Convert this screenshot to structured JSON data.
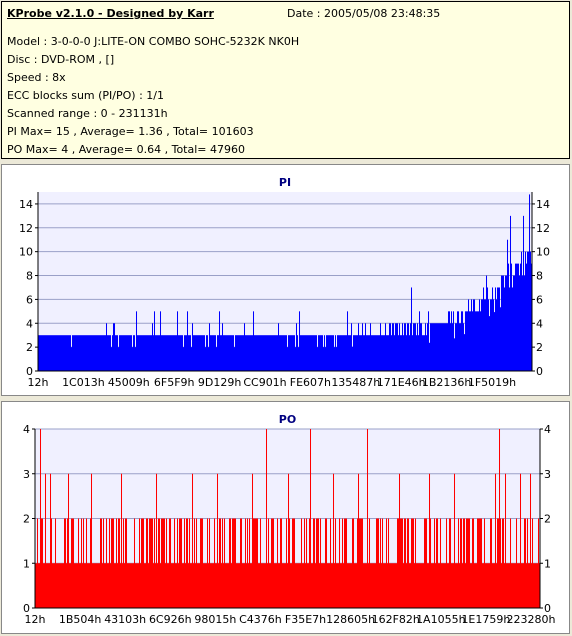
{
  "info": {
    "title": "KProbe v2.1.0 - Designed by Karr",
    "date": "Date : 2005/05/08 23:48:35",
    "lines": [
      "Model : 3-0-0-0 J:LITE-ON COMBO SOHC-5232K NK0H",
      "Disc : DVD-ROM ,  []",
      "Speed : 8x",
      "ECC blocks sum (PI/PO) : 1/1",
      "Scanned range : 0 - 231131h",
      "PI Max= 15 , Average= 1.36 , Total= 101603",
      "PO Max= 4 , Average= 0.64 , Total= 47960"
    ]
  },
  "colors": {
    "pi": "#0000ff",
    "po": "#ff0000",
    "title": "#000080",
    "plot_bg": "#f0f0ff",
    "grid": "#9aa0c8"
  },
  "chart_data": [
    {
      "type": "bar",
      "title": "PI",
      "xlabel": "",
      "ylabel": "",
      "ylim": [
        0,
        15
      ],
      "yticks": [
        0,
        2,
        4,
        6,
        8,
        10,
        12,
        14
      ],
      "x_tick_labels": [
        "12h",
        "1C013h",
        "45009h",
        "6F5F9h",
        "9D129h",
        "CC901h",
        "FE607h",
        "135487h",
        "171E46h",
        "1B2136h",
        "1F5019h"
      ],
      "x_range": [
        "0",
        "231131h"
      ],
      "grid": true,
      "max": 15,
      "average": 1.36,
      "total": 101603,
      "profile": [
        [
          0.0,
          2.6,
          3.2,
          4
        ],
        [
          0.1,
          2.6,
          3.1,
          4
        ],
        [
          0.2,
          2.7,
          3.2,
          5
        ],
        [
          0.3,
          2.8,
          3.3,
          6
        ],
        [
          0.4,
          2.9,
          3.3,
          5
        ],
        [
          0.5,
          3.0,
          3.4,
          5
        ],
        [
          0.6,
          3.0,
          3.5,
          5
        ],
        [
          0.7,
          3.1,
          3.6,
          6
        ],
        [
          0.75,
          3.2,
          3.8,
          7
        ],
        [
          0.8,
          3.4,
          4.2,
          8
        ],
        [
          0.85,
          3.8,
          5.0,
          8
        ],
        [
          0.88,
          4.5,
          6.0,
          9
        ],
        [
          0.91,
          5.5,
          7.2,
          10
        ],
        [
          0.94,
          6.5,
          8.3,
          12
        ],
        [
          0.97,
          7.5,
          9.5,
          14
        ],
        [
          1.0,
          9.0,
          11.0,
          15
        ]
      ]
    },
    {
      "type": "bar",
      "title": "PO",
      "xlabel": "",
      "ylabel": "",
      "ylim": [
        0,
        4
      ],
      "yticks": [
        0,
        1,
        2,
        3,
        4
      ],
      "x_tick_labels": [
        "12h",
        "1B504h",
        "43103h",
        "6C926h",
        "98015h",
        "C4376h",
        "F35E7h",
        "128605h",
        "162F82h",
        "1A1055h",
        "1E1759h",
        "223280h"
      ],
      "x_range": [
        "0",
        "231131h"
      ],
      "grid": true,
      "max": 4,
      "average": 0.64,
      "total": 47960,
      "spikes_value_4_at": [
        0.01,
        0.458,
        0.545,
        0.657,
        0.918
      ],
      "spikes_value_3_at": [
        0.02,
        0.03,
        0.065,
        0.11,
        0.17,
        0.24,
        0.31,
        0.36,
        0.43,
        0.5,
        0.59,
        0.64,
        0.72,
        0.78,
        0.83,
        0.91,
        0.93,
        0.96,
        0.98
      ]
    }
  ]
}
